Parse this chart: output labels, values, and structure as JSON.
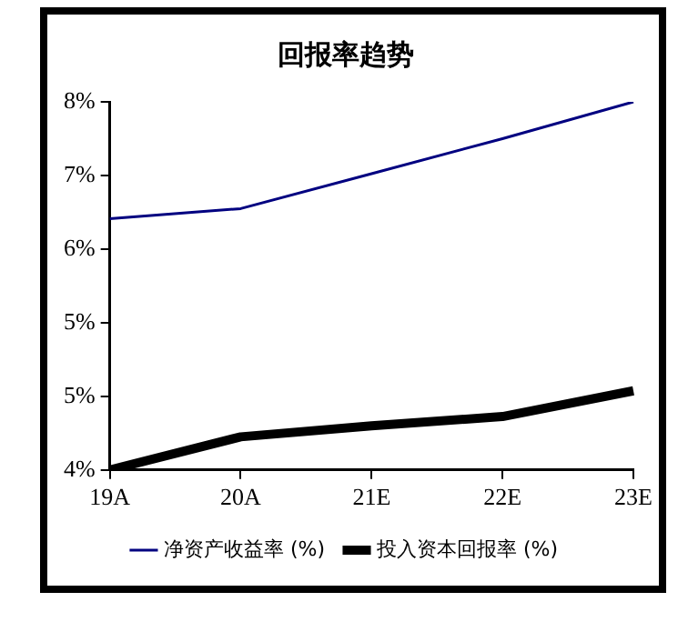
{
  "chart_data": {
    "type": "line",
    "title": "回报率趋势",
    "categories": [
      "19A",
      "20A",
      "21E",
      "22E",
      "23E"
    ],
    "series": [
      {
        "name": "净资产收益率 (%)",
        "color": "#000080",
        "values": [
          6.53,
          6.64,
          7.02,
          7.4,
          7.8
        ]
      },
      {
        "name": "投入资本回报率 (%)",
        "color": "#000000",
        "values": [
          3.8,
          4.16,
          4.28,
          4.38,
          4.66
        ]
      }
    ],
    "ylim": [
      3.8,
      7.8
    ],
    "yticks": [
      {
        "value": 3.8,
        "label": "4%"
      },
      {
        "value": 4.6,
        "label": "5%"
      },
      {
        "value": 5.4,
        "label": "5%"
      },
      {
        "value": 6.2,
        "label": "6%"
      },
      {
        "value": 7.0,
        "label": "7%"
      },
      {
        "value": 7.8,
        "label": "8%"
      }
    ],
    "grid": false,
    "legend": "bottom",
    "marker": "none",
    "line_style": "solid"
  }
}
